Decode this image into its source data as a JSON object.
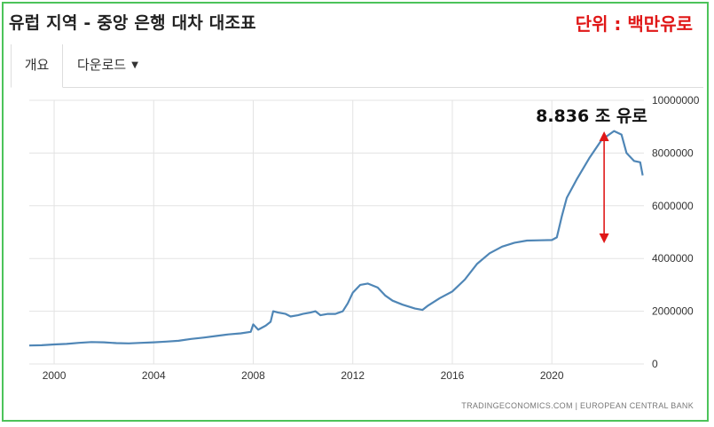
{
  "header": {
    "title": "유럽 지역 - 중앙 은행 대차 대조표",
    "unit_label": "단위 : 백만유로"
  },
  "tabs": [
    {
      "label": "개요",
      "active": true
    },
    {
      "label": "다운로드",
      "dropdown": true
    }
  ],
  "colors": {
    "frame": "#4cc35a",
    "line": "#4f86b6",
    "unit_text": "#e01818",
    "arrow": "#e01818"
  },
  "source_label": "TRADINGECONOMICS.COM  |  EUROPEAN CENTRAL BANK",
  "annotation": {
    "text": "8.836 조 유로",
    "value": 8836000
  },
  "chart_data": {
    "type": "line",
    "title": "",
    "xlabel": "",
    "ylabel": "",
    "xlim": [
      1999.0,
      2023.7
    ],
    "ylim": [
      0,
      10000000
    ],
    "x_ticks": [
      "2000",
      "2004",
      "2008",
      "2012",
      "2016",
      "2020"
    ],
    "y_ticks": [
      "0",
      "2000000",
      "4000000",
      "6000000",
      "8000000",
      "10000000"
    ],
    "y_axis_side": "right",
    "grid": true,
    "series": [
      {
        "points": [
          [
            1999.0,
            700000
          ],
          [
            1999.5,
            710000
          ],
          [
            2000.0,
            740000
          ],
          [
            2000.5,
            760000
          ],
          [
            2001.0,
            800000
          ],
          [
            2001.5,
            830000
          ],
          [
            2002.0,
            820000
          ],
          [
            2002.5,
            790000
          ],
          [
            2003.0,
            780000
          ],
          [
            2003.5,
            800000
          ],
          [
            2004.0,
            820000
          ],
          [
            2004.5,
            850000
          ],
          [
            2005.0,
            880000
          ],
          [
            2005.5,
            950000
          ],
          [
            2006.0,
            1000000
          ],
          [
            2006.5,
            1060000
          ],
          [
            2007.0,
            1120000
          ],
          [
            2007.5,
            1160000
          ],
          [
            2007.9,
            1220000
          ],
          [
            2008.0,
            1500000
          ],
          [
            2008.2,
            1300000
          ],
          [
            2008.5,
            1450000
          ],
          [
            2008.7,
            1600000
          ],
          [
            2008.8,
            2000000
          ],
          [
            2009.0,
            1950000
          ],
          [
            2009.3,
            1900000
          ],
          [
            2009.5,
            1800000
          ],
          [
            2009.8,
            1850000
          ],
          [
            2010.0,
            1900000
          ],
          [
            2010.3,
            1950000
          ],
          [
            2010.5,
            2000000
          ],
          [
            2010.7,
            1850000
          ],
          [
            2011.0,
            1900000
          ],
          [
            2011.3,
            1900000
          ],
          [
            2011.6,
            2000000
          ],
          [
            2011.8,
            2300000
          ],
          [
            2012.0,
            2700000
          ],
          [
            2012.3,
            3000000
          ],
          [
            2012.6,
            3050000
          ],
          [
            2013.0,
            2900000
          ],
          [
            2013.3,
            2600000
          ],
          [
            2013.6,
            2400000
          ],
          [
            2014.0,
            2250000
          ],
          [
            2014.5,
            2100000
          ],
          [
            2014.8,
            2050000
          ],
          [
            2015.0,
            2200000
          ],
          [
            2015.5,
            2500000
          ],
          [
            2016.0,
            2750000
          ],
          [
            2016.5,
            3200000
          ],
          [
            2017.0,
            3800000
          ],
          [
            2017.5,
            4200000
          ],
          [
            2018.0,
            4450000
          ],
          [
            2018.5,
            4600000
          ],
          [
            2019.0,
            4680000
          ],
          [
            2019.5,
            4690000
          ],
          [
            2020.0,
            4700000
          ],
          [
            2020.2,
            4800000
          ],
          [
            2020.4,
            5600000
          ],
          [
            2020.6,
            6300000
          ],
          [
            2021.0,
            7000000
          ],
          [
            2021.5,
            7800000
          ],
          [
            2022.0,
            8500000
          ],
          [
            2022.5,
            8836000
          ],
          [
            2022.8,
            8700000
          ],
          [
            2023.0,
            8000000
          ],
          [
            2023.3,
            7700000
          ],
          [
            2023.55,
            7650000
          ],
          [
            2023.65,
            7150000
          ]
        ]
      }
    ]
  }
}
